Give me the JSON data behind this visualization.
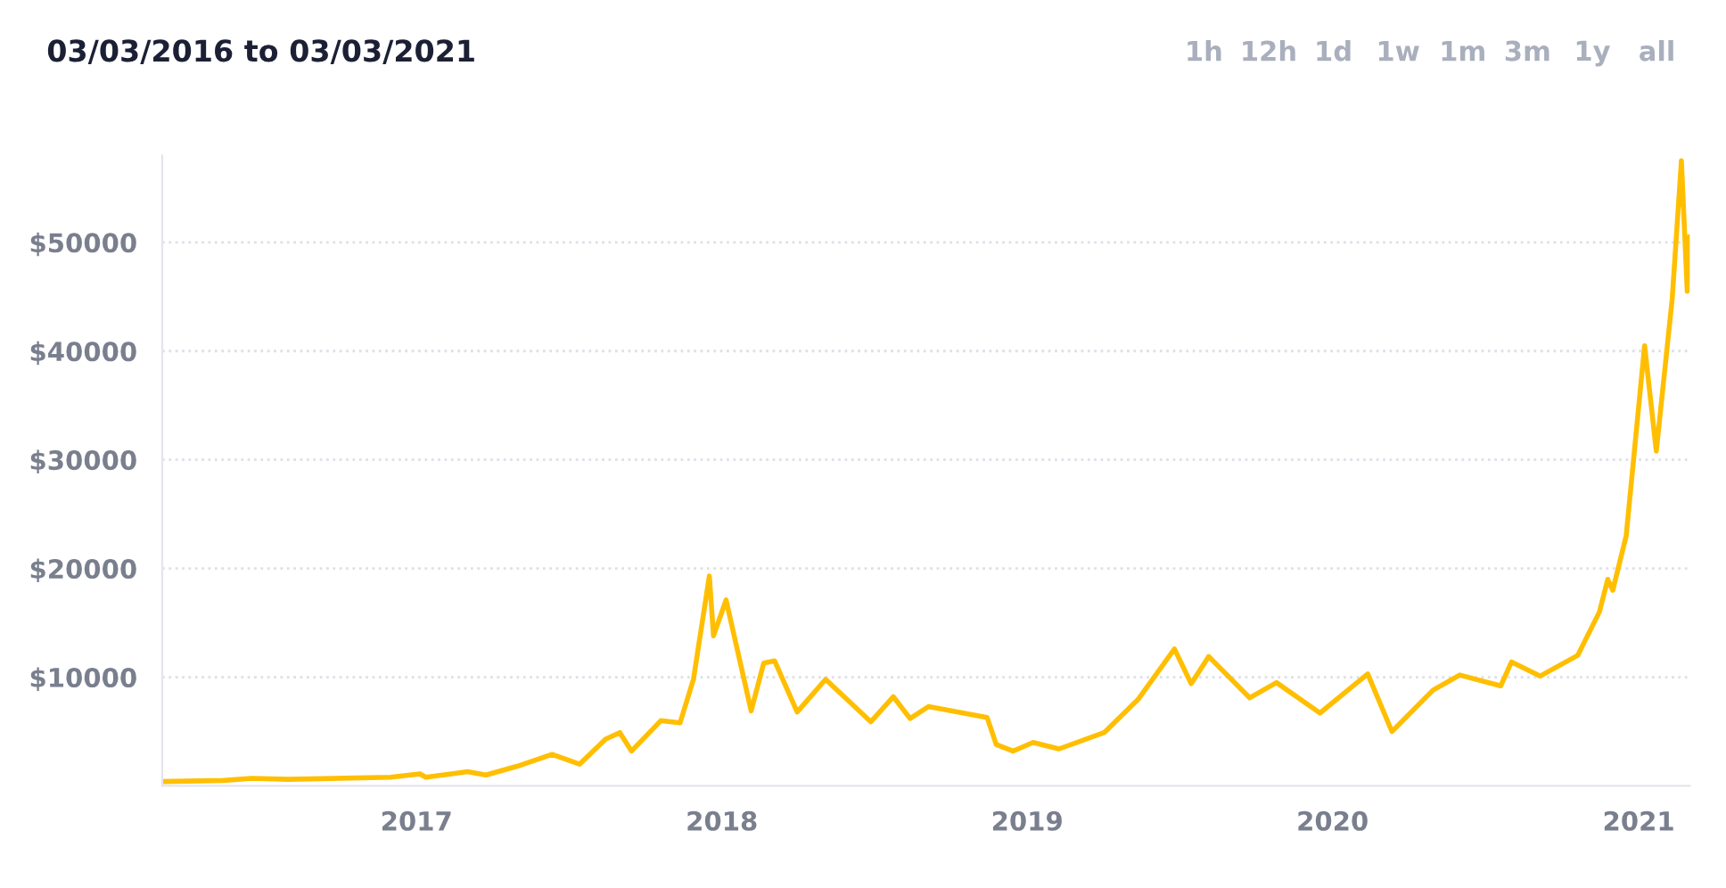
{
  "chart_data": {
    "type": "line",
    "title": "03/03/2016 to 03/03/2021",
    "annotations": [
      "1h",
      "12h",
      "1d",
      "1w",
      "1m",
      "3m",
      "1y",
      "all"
    ],
    "x": [
      "2016-03-03",
      "2016-05-15",
      "2016-06-18",
      "2016-08-01",
      "2016-12-01",
      "2017-01-05",
      "2017-01-12",
      "2017-03-03",
      "2017-03-25",
      "2017-05-01",
      "2017-06-12",
      "2017-07-15",
      "2017-08-15",
      "2017-09-01",
      "2017-09-15",
      "2017-10-20",
      "2017-11-12",
      "2017-11-28",
      "2017-12-17",
      "2017-12-22",
      "2018-01-06",
      "2018-02-05",
      "2018-02-20",
      "2018-03-05",
      "2018-04-01",
      "2018-05-05",
      "2018-06-28",
      "2018-07-25",
      "2018-08-14",
      "2018-09-05",
      "2018-11-14",
      "2018-11-25",
      "2018-12-15",
      "2019-01-08",
      "2019-02-08",
      "2019-04-03",
      "2019-05-14",
      "2019-06-26",
      "2019-07-16",
      "2019-08-06",
      "2019-09-24",
      "2019-10-26",
      "2019-12-17",
      "2020-02-12",
      "2020-03-12",
      "2020-04-30",
      "2020-06-01",
      "2020-07-20",
      "2020-08-02",
      "2020-09-05",
      "2020-10-20",
      "2020-11-15",
      "2020-11-25",
      "2020-12-01",
      "2020-12-17",
      "2021-01-08",
      "2021-01-22",
      "2021-02-10",
      "2021-02-21",
      "2021-02-28",
      "2021-03-03"
    ],
    "series": [
      {
        "color": "#ffbf00",
        "values": [
          400,
          500,
          700,
          600,
          800,
          1100,
          800,
          1300,
          1000,
          1800,
          2900,
          2000,
          4300,
          4900,
          3200,
          6000,
          5800,
          9800,
          19300,
          13800,
          17100,
          6900,
          11300,
          11500,
          6800,
          9800,
          5900,
          8200,
          6200,
          7300,
          6300,
          3800,
          3200,
          4000,
          3400,
          4900,
          8000,
          12600,
          9400,
          11900,
          8100,
          9500,
          6700,
          10300,
          5000,
          8800,
          10200,
          9200,
          11400,
          10100,
          12000,
          16000,
          19000,
          18000,
          23000,
          40500,
          30800,
          44800,
          57500,
          45500,
          50500
        ]
      }
    ],
    "xlim": [
      "2016-03-03",
      "2021-03-03"
    ],
    "xticks": [
      {
        "value": "2017-01-01",
        "label": "2017"
      },
      {
        "value": "2018-01-01",
        "label": "2018"
      },
      {
        "value": "2019-01-01",
        "label": "2019"
      },
      {
        "value": "2020-01-01",
        "label": "2020"
      },
      {
        "value": "2021-01-01",
        "label": "2021"
      }
    ],
    "ylim": [
      0,
      58000
    ],
    "yticks": [
      {
        "value": 10000,
        "label": "$10000"
      },
      {
        "value": 20000,
        "label": "$20000"
      },
      {
        "value": 30000,
        "label": "$30000"
      },
      {
        "value": 40000,
        "label": "$40000"
      },
      {
        "value": 50000,
        "label": "$50000"
      }
    ],
    "grid": "y",
    "legend": false,
    "marker": "none",
    "line_style": "solid"
  }
}
